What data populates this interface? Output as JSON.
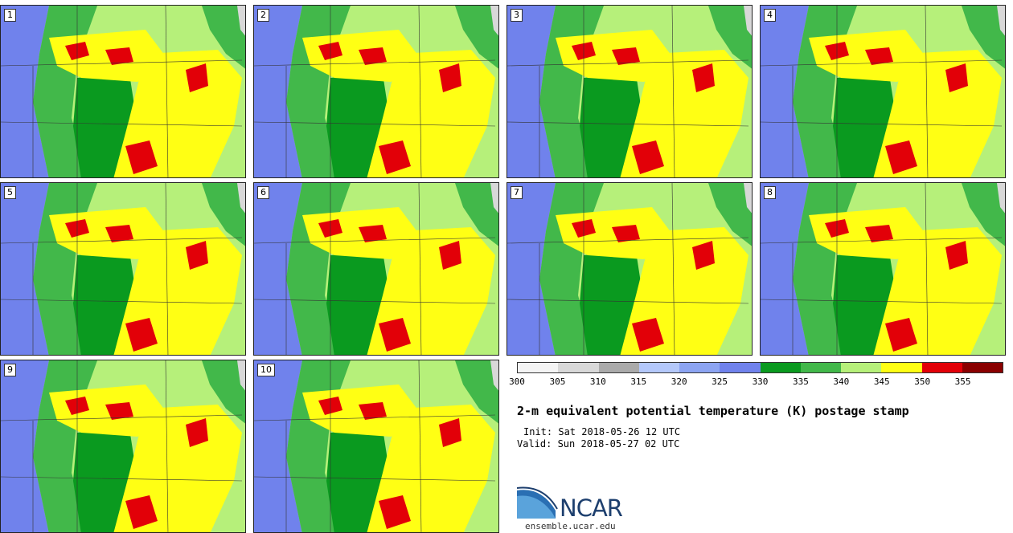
{
  "title": "2-m equivalent potential temperature (K) postage stamp",
  "init": "Init: Sat 2018-05-26 12 UTC",
  "valid": "Valid: Sun 2018-05-27 02 UTC",
  "logo": {
    "name": "NCAR",
    "url": "ensemble.ucar.edu"
  },
  "members": [
    "1",
    "2",
    "3",
    "4",
    "5",
    "6",
    "7",
    "8",
    "9",
    "10"
  ],
  "colorbar": {
    "levels": [
      "300",
      "305",
      "310",
      "315",
      "320",
      "325",
      "330",
      "335",
      "340",
      "345",
      "350",
      "355"
    ],
    "colors": [
      "#f4f4f4",
      "#d8d8d8",
      "#aaaaaa",
      "#b4c8fa",
      "#8ca4f2",
      "#7082ec",
      "#0a9a1f",
      "#42b84a",
      "#b6f07a",
      "#ffff14",
      "#e20008",
      "#8a0000"
    ]
  }
}
